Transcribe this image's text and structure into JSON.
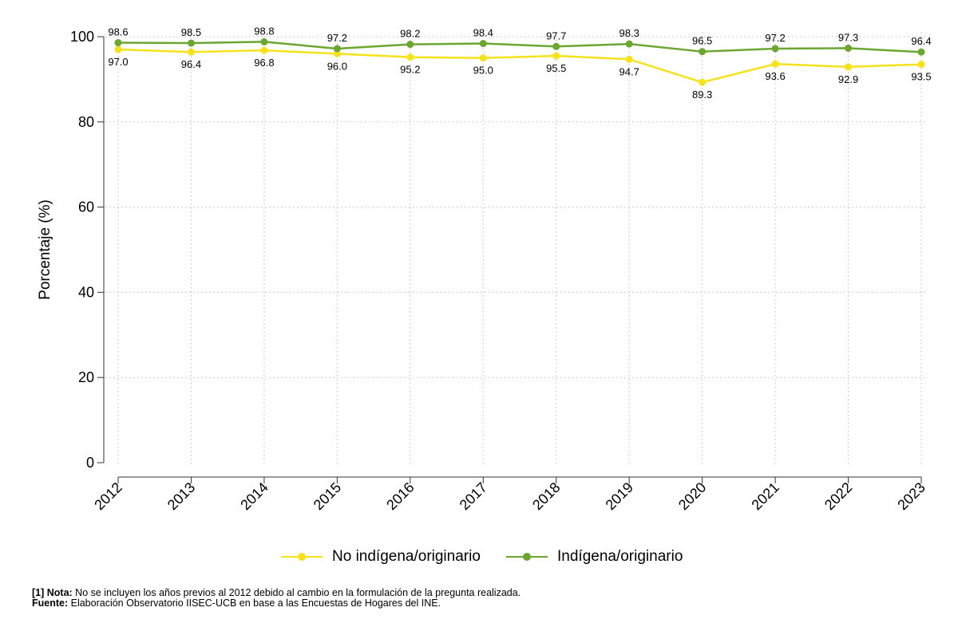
{
  "chart_data": {
    "type": "line",
    "title": "",
    "xlabel": "",
    "ylabel": "Porcentaje (%)",
    "ylim": [
      0,
      100
    ],
    "yticks": [
      "0",
      "20",
      "40",
      "60",
      "80",
      "100"
    ],
    "grid": true,
    "legend_position": "bottom",
    "categories": [
      "2012",
      "2013",
      "2014",
      "2015",
      "2016",
      "2017",
      "2018",
      "2019",
      "2020",
      "2021",
      "2022",
      "2023"
    ],
    "series": [
      {
        "name": "No indígena/originario",
        "color": "#f5e21b",
        "values": [
          97.0,
          96.4,
          96.8,
          96.0,
          95.2,
          95.0,
          95.5,
          94.7,
          89.3,
          93.6,
          92.9,
          93.5
        ],
        "labels": [
          "97.0",
          "96.4",
          "96.8",
          "96.0",
          "95.2",
          "95.0",
          "95.5",
          "94.7",
          "89.3",
          "93.6",
          "92.9",
          "93.5"
        ],
        "label_position": "below"
      },
      {
        "name": "Indígena/originario",
        "color": "#6ba631",
        "values": [
          98.6,
          98.5,
          98.8,
          97.2,
          98.2,
          98.4,
          97.7,
          98.3,
          96.5,
          97.2,
          97.3,
          96.4
        ],
        "labels": [
          "98.6",
          "98.5",
          "98.8",
          "97.2",
          "98.2",
          "98.4",
          "97.7",
          "98.3",
          "96.5",
          "97.2",
          "97.3",
          "96.4"
        ],
        "label_position": "above"
      }
    ]
  },
  "footnote": {
    "note_label": "[1] Nota:",
    "note_text": " No se incluyen los años previos al 2012 debido al cambio en la formulación de la pregunta realizada.",
    "source_label": "Fuente:",
    "source_text": " Elaboración Observatorio IISEC-UCB en base a las Encuestas de Hogares del INE."
  }
}
